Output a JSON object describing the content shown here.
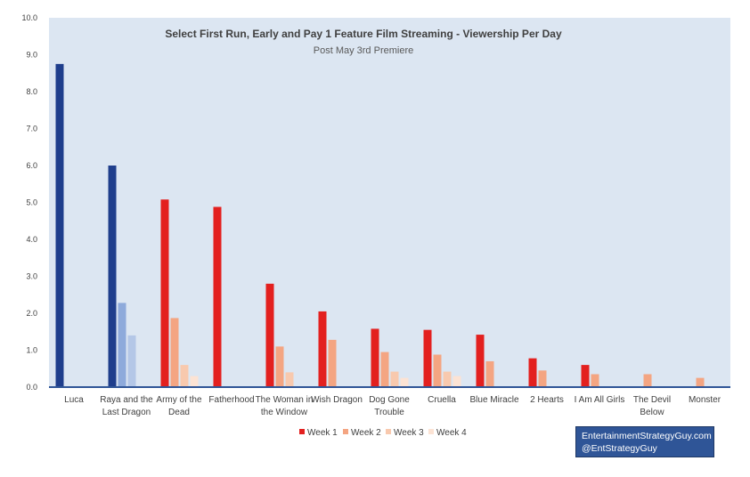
{
  "chart_data": {
    "type": "bar",
    "title": "Select First Run, Early and Pay 1 Feature Film Streaming - Viewership Per Day",
    "subtitle": "Post May 3rd Premiere",
    "xlabel": "",
    "ylabel": "",
    "ylim": [
      0,
      10
    ],
    "yticks": [
      "0.0",
      "1.0",
      "2.0",
      "3.0",
      "4.0",
      "5.0",
      "6.0",
      "7.0",
      "8.0",
      "9.0",
      "10.0"
    ],
    "grid": false,
    "legend_position": "bottom",
    "categories": [
      [
        "Luca"
      ],
      [
        "Raya and the",
        "Last Dragon"
      ],
      [
        "Army of the",
        "Dead"
      ],
      [
        "Fatherhood"
      ],
      [
        "The Woman in",
        "the Window"
      ],
      [
        "Wish Dragon"
      ],
      [
        "Dog Gone",
        "Trouble"
      ],
      [
        "Cruella"
      ],
      [
        "Blue Miracle"
      ],
      [
        "2 Hearts"
      ],
      [
        "I Am All Girls"
      ],
      [
        "The Devil",
        "Below"
      ],
      [
        "Monster"
      ]
    ],
    "series": [
      {
        "name": "Week 1",
        "color": "#e3201f",
        "values": [
          8.75,
          6.0,
          5.08,
          4.88,
          2.8,
          2.05,
          1.58,
          1.55,
          1.42,
          0.78,
          0.6,
          null,
          null
        ]
      },
      {
        "name": "Week 2",
        "color": "#f4a582",
        "values": [
          null,
          2.28,
          1.87,
          null,
          1.1,
          1.28,
          0.95,
          0.88,
          0.7,
          0.45,
          0.35,
          0.35,
          0.25
        ]
      },
      {
        "name": "Week 3",
        "color": "#f8c9ae",
        "values": [
          null,
          1.4,
          0.6,
          null,
          0.4,
          null,
          0.42,
          0.42,
          null,
          null,
          null,
          null,
          null
        ]
      },
      {
        "name": "Week 4",
        "color": "#fce3d4",
        "values": [
          null,
          null,
          0.3,
          null,
          null,
          null,
          0.25,
          0.3,
          null,
          null,
          null,
          null,
          null
        ]
      }
    ],
    "highlight_colors": {
      "Luca": [
        "#1f3e8c",
        null,
        null,
        null
      ],
      "Raya and the Last Dragon": [
        "#1f3e8c",
        "#8eaadb",
        "#b4c7e7",
        null
      ]
    },
    "plot_background": "#dce6f2",
    "axis_color": "#2f5597"
  },
  "watermark": {
    "line1": "EntertainmentStrategyGuy.com",
    "line2": "@EntStrategyGuy"
  }
}
